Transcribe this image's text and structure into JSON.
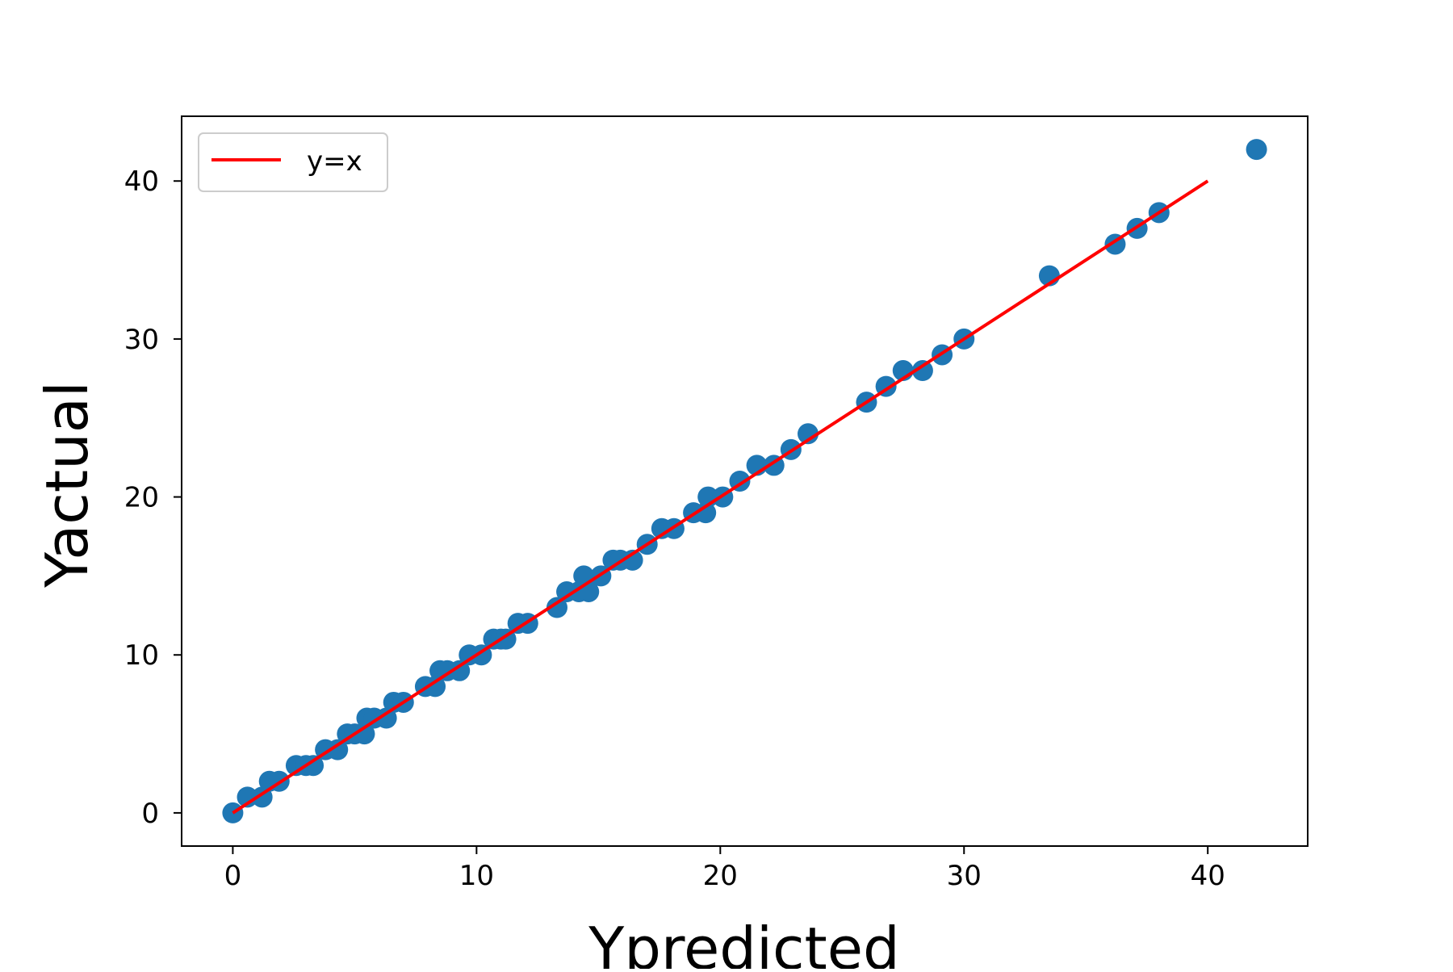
{
  "chart_data": {
    "type": "scatter",
    "title": "",
    "xlabel": "Ypredicted",
    "ylabel": "Yactual",
    "xlim": [
      -2.1,
      44.1
    ],
    "ylim": [
      -2.1,
      44.1
    ],
    "xticks": [
      0,
      10,
      20,
      30,
      40
    ],
    "yticks": [
      0,
      10,
      20,
      30,
      40
    ],
    "grid": false,
    "legend": {
      "placement": "top-left",
      "entries": [
        "y=x"
      ]
    },
    "colors": {
      "points": "#1f77b4",
      "line": "#ff0000"
    },
    "series": [
      {
        "kind": "scatter",
        "x": [
          0.0,
          0.6,
          1.2,
          1.5,
          1.9,
          2.6,
          3.0,
          3.3,
          3.8,
          4.3,
          4.7,
          5.0,
          5.4,
          5.5,
          5.8,
          6.3,
          6.6,
          7.0,
          7.9,
          8.3,
          8.5,
          8.8,
          9.3,
          9.7,
          10.2,
          10.7,
          11.0,
          11.2,
          11.7,
          12.1,
          13.3,
          13.7,
          14.2,
          14.4,
          14.6,
          15.1,
          15.6,
          15.9,
          16.4,
          17.0,
          17.6,
          18.1,
          18.9,
          19.4,
          19.5,
          20.1,
          20.8,
          21.5,
          22.2,
          22.9,
          23.6,
          26.0,
          26.8,
          27.5,
          28.3,
          29.1,
          30.0,
          33.5,
          36.2,
          37.1,
          38.0,
          42.0
        ],
        "y": [
          0,
          1,
          1,
          2,
          2,
          3,
          3,
          3,
          4,
          4,
          5,
          5,
          5,
          6,
          6,
          6,
          7,
          7,
          8,
          8,
          9,
          9,
          9,
          10,
          10,
          11,
          11,
          11,
          12,
          12,
          13,
          14,
          14,
          15,
          14,
          15,
          16,
          16,
          16,
          17,
          18,
          18,
          19,
          19,
          20,
          20,
          21,
          22,
          22,
          23,
          24,
          26,
          27,
          28,
          28,
          29,
          30,
          34,
          36,
          37,
          38,
          42
        ]
      },
      {
        "kind": "line",
        "name": "y=x",
        "x": [
          0,
          40
        ],
        "y": [
          0,
          40
        ]
      }
    ]
  }
}
